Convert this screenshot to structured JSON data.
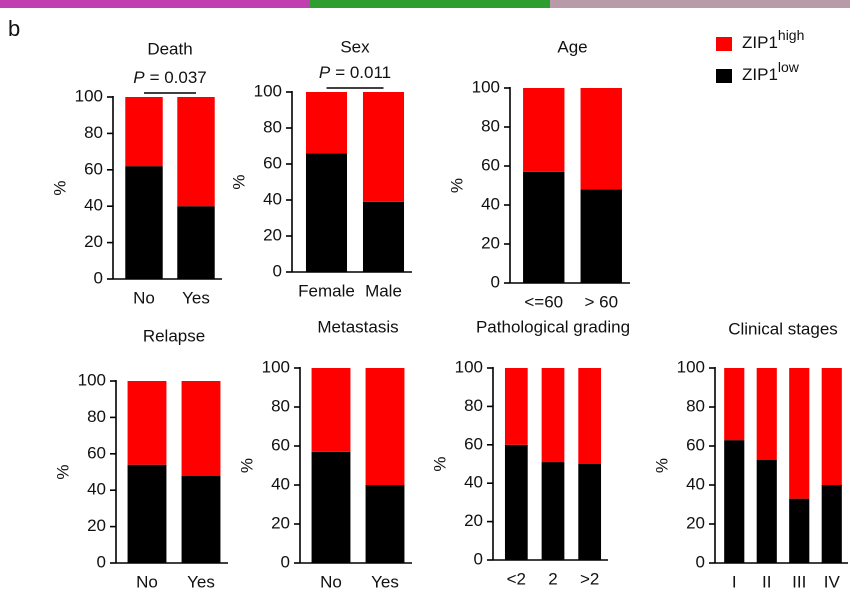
{
  "panel_label": "b",
  "chart_data": [
    {
      "type": "bar",
      "stacked": true,
      "title": "Death",
      "annotation": {
        "symbol": "P",
        "text": "= 0.037"
      },
      "ylabel": "%",
      "categories": [
        "No",
        "Yes"
      ],
      "ylim": [
        0,
        100
      ],
      "yticks": [
        0,
        20,
        40,
        60,
        80,
        100
      ],
      "series": [
        {
          "name": "ZIP1",
          "name_superscript": "low",
          "color": "#000000",
          "values": [
            62,
            40
          ]
        },
        {
          "name": "ZIP1",
          "name_superscript": "high",
          "color": "#ff0000",
          "values": [
            38,
            60
          ]
        }
      ]
    },
    {
      "type": "bar",
      "stacked": true,
      "title": "Sex",
      "annotation": {
        "symbol": "P",
        "text": "= 0.011"
      },
      "ylabel": "%",
      "categories": [
        "Female",
        "Male"
      ],
      "ylim": [
        0,
        100
      ],
      "yticks": [
        0,
        20,
        40,
        60,
        80,
        100
      ],
      "series": [
        {
          "color": "#000000",
          "values": [
            66,
            39
          ]
        },
        {
          "color": "#ff0000",
          "values": [
            34,
            61
          ]
        }
      ]
    },
    {
      "type": "bar",
      "stacked": true,
      "title": "Age",
      "ylabel": "%",
      "categories": [
        "<=60",
        "> 60"
      ],
      "ylim": [
        0,
        100
      ],
      "yticks": [
        0,
        20,
        40,
        60,
        80,
        100
      ],
      "series": [
        {
          "color": "#000000",
          "values": [
            57,
            48
          ]
        },
        {
          "color": "#ff0000",
          "values": [
            43,
            52
          ]
        }
      ]
    },
    {
      "type": "bar",
      "stacked": true,
      "title": "Relapse",
      "ylabel": "%",
      "categories": [
        "No",
        "Yes"
      ],
      "ylim": [
        0,
        100
      ],
      "yticks": [
        0,
        20,
        40,
        60,
        80,
        100
      ],
      "series": [
        {
          "color": "#000000",
          "values": [
            54,
            48
          ]
        },
        {
          "color": "#ff0000",
          "values": [
            46,
            52
          ]
        }
      ]
    },
    {
      "type": "bar",
      "stacked": true,
      "title": "Metastasis",
      "ylabel": "%",
      "categories": [
        "No",
        "Yes"
      ],
      "ylim": [
        0,
        100
      ],
      "yticks": [
        0,
        20,
        40,
        60,
        80,
        100
      ],
      "series": [
        {
          "color": "#000000",
          "values": [
            57,
            40
          ]
        },
        {
          "color": "#ff0000",
          "values": [
            43,
            60
          ]
        }
      ]
    },
    {
      "type": "bar",
      "stacked": true,
      "title": "Pathological grading",
      "ylabel": "%",
      "categories": [
        "<2",
        "2",
        ">2"
      ],
      "ylim": [
        0,
        100
      ],
      "yticks": [
        0,
        20,
        40,
        60,
        80,
        100
      ],
      "series": [
        {
          "color": "#000000",
          "values": [
            60,
            51,
            50
          ]
        },
        {
          "color": "#ff0000",
          "values": [
            40,
            49,
            50
          ]
        }
      ]
    },
    {
      "type": "bar",
      "stacked": true,
      "title": "Clinical stages",
      "ylabel": "%",
      "categories": [
        "I",
        "II",
        "III",
        "IV"
      ],
      "ylim": [
        0,
        100
      ],
      "yticks": [
        0,
        20,
        40,
        60,
        80,
        100
      ],
      "series": [
        {
          "color": "#000000",
          "values": [
            63,
            53,
            33,
            40
          ]
        },
        {
          "color": "#ff0000",
          "values": [
            37,
            47,
            67,
            60
          ]
        }
      ]
    }
  ]
}
